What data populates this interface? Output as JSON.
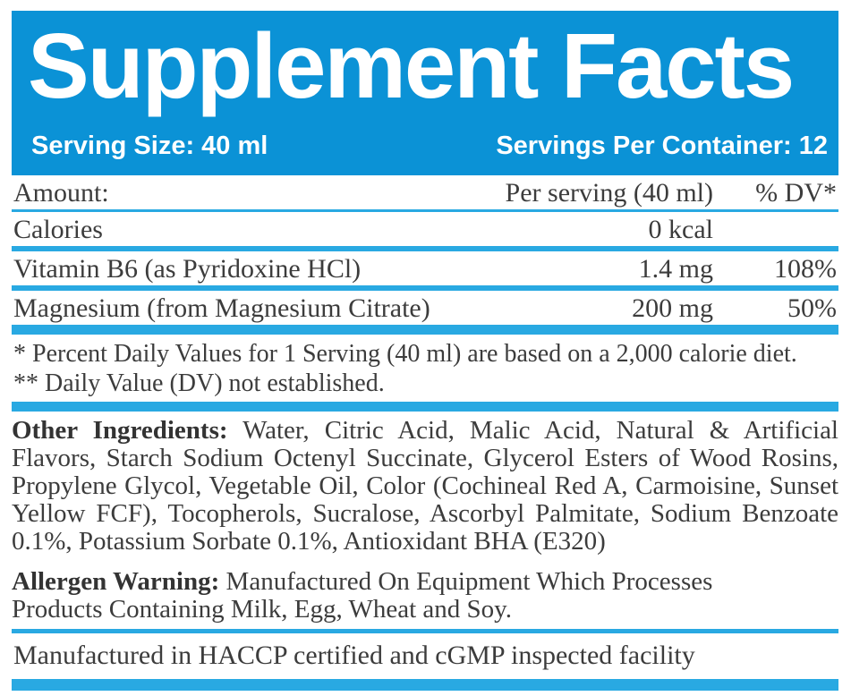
{
  "colors": {
    "header_blue": "#0b92d6",
    "divider_blue": "#29a9e2",
    "text_gray": "#3c3c3c",
    "header_text": "#ffffff"
  },
  "header": {
    "title": "Supplement Facts",
    "serving_size": "Serving Size: 40 ml",
    "servings_per_container": "Servings Per Container: 12"
  },
  "table": {
    "columns": [
      "Amount:",
      "Per serving (40 ml)",
      "% DV*"
    ],
    "rows": [
      {
        "name": "Calories",
        "amount": "0 kcal",
        "dv": ""
      },
      {
        "name": "Vitamin B6 (as Pyridoxine HCl)",
        "amount": "1.4 mg",
        "dv": "108%"
      },
      {
        "name": "Magnesium (from Magnesium Citrate)",
        "amount": "200 mg",
        "dv": "50%"
      }
    ]
  },
  "footnotes": [
    "* Percent Daily Values for 1 Serving (40 ml) are based on a 2,000 calorie diet.",
    "** Daily Value (DV) not established."
  ],
  "other_ingredients": {
    "label": "Other Ingredients:",
    "text": " Water, Citric Acid, Malic Acid, Natural & Artificial Flavors, Starch Sodium Octenyl Succinate, Glycerol Esters of Wood Rosins, Propylene Glycol, Vegetable Oil, Color (Cochineal Red A, Carmoisine, Sunset Yellow FCF), Tocopherols, Sucralose, Ascorbyl Palmitate, Sodium Benzoate 0.1%, Potassium Sorbate 0.1%, Antioxidant BHA (E320)"
  },
  "allergen": {
    "label": "Allergen Warning:",
    "text": " Manufactured On Equipment Which Processes Products Containing Milk, Egg, Wheat and Soy."
  },
  "facility": "Manufactured in HACCP certified and cGMP inspected facility"
}
